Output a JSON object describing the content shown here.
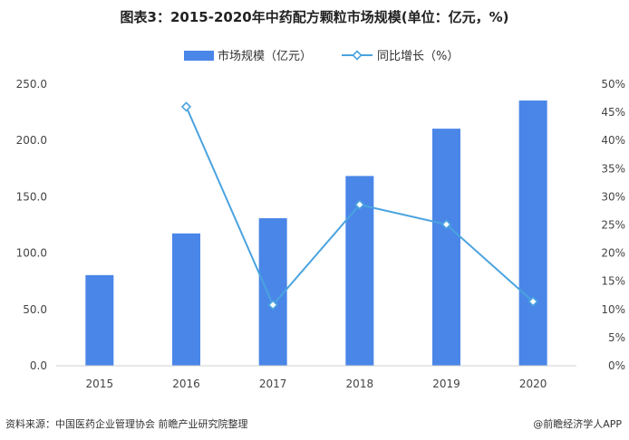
{
  "title": "图表3：2015-2020年中药配方颗粒市场规模(单位：亿元，%)",
  "source": "资料来源：中国医药企业管理协会 前瞻产业研究院整理",
  "app_credit": "@前瞻经济学人APP",
  "chart_data": {
    "type": "bar",
    "categories": [
      "2015",
      "2016",
      "2017",
      "2018",
      "2019",
      "2020"
    ],
    "series": [
      {
        "name": "市场规模（亿元）",
        "type": "bar",
        "axis": "left",
        "color": "#4a86e8",
        "values": [
          80.5,
          117.5,
          131,
          168.5,
          210.5,
          235.5
        ]
      },
      {
        "name": "同比增长（%）",
        "type": "line",
        "axis": "right",
        "color": "#4aa3df",
        "marker": "diamond",
        "values": [
          null,
          46,
          10.8,
          28.6,
          25.1,
          11.4
        ]
      }
    ],
    "y_left": {
      "ylim": [
        0,
        250
      ],
      "ticks": [
        "0.0",
        "50.0",
        "100.0",
        "150.0",
        "200.0",
        "250.0"
      ]
    },
    "y_right": {
      "ylim": [
        0,
        50
      ],
      "ticks": [
        "0%",
        "5%",
        "10%",
        "15%",
        "20%",
        "25%",
        "30%",
        "35%",
        "40%",
        "45%",
        "50%"
      ]
    },
    "grid": false,
    "legend_position": "top-center"
  }
}
